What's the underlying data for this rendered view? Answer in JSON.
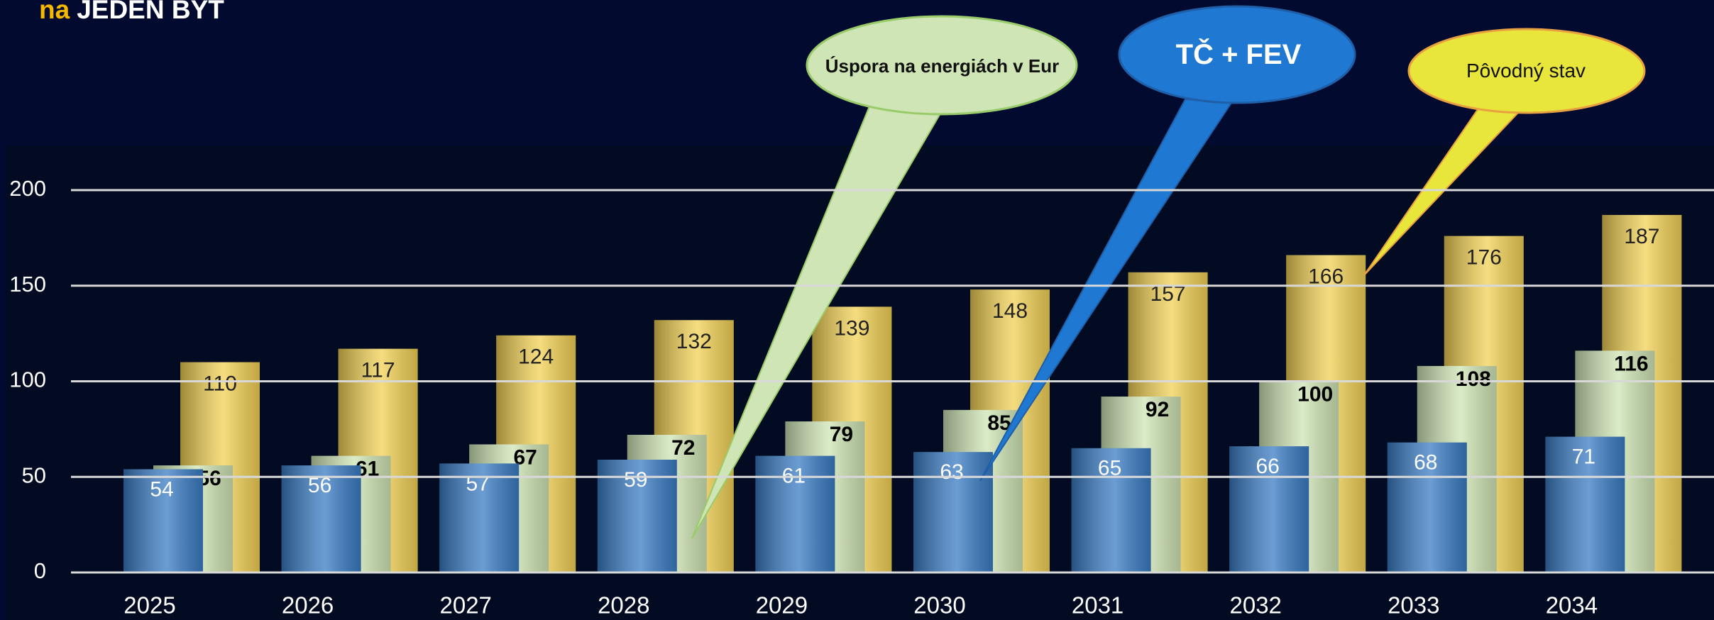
{
  "chart_data": {
    "type": "bar",
    "title_prefix": "na",
    "title": "JEDEN BYT",
    "categories": [
      "2025",
      "2026",
      "2027",
      "2028",
      "2029",
      "2030",
      "2031",
      "2032",
      "2033",
      "2034"
    ],
    "series": [
      {
        "name": "TČ + FEV",
        "color": "#3a7cc4",
        "values": [
          54,
          56,
          57,
          59,
          61,
          63,
          65,
          66,
          68,
          71
        ]
      },
      {
        "name": "Úspora na energiách v Eur",
        "color": "#cfe5b5",
        "values": [
          56,
          61,
          67,
          72,
          79,
          85,
          92,
          100,
          108,
          116
        ]
      },
      {
        "name": "Pôvodný stav",
        "color": "#f2d155",
        "values": [
          110,
          117,
          124,
          132,
          139,
          148,
          157,
          166,
          176,
          187
        ]
      }
    ],
    "ylim": [
      0,
      200
    ],
    "yticks": [
      0,
      50,
      100,
      150,
      200
    ],
    "grid": true
  }
}
